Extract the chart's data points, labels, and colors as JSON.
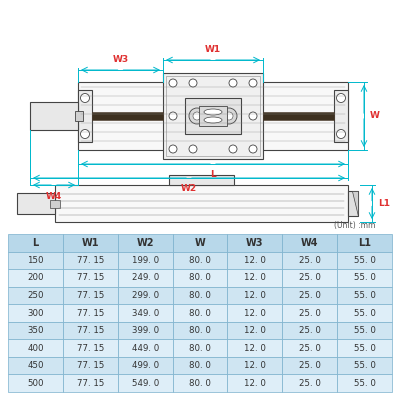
{
  "background_color": "#ffffff",
  "table_header_color": "#b8d8ea",
  "table_row_color1": "#cfe5f2",
  "table_row_color2": "#deeef8",
  "table_border_color": "#7ab0cc",
  "dim_color": "#00b8cc",
  "label_color": "#e03030",
  "draw_color": "#444444",
  "draw_color2": "#888888",
  "unit_text": "(Unit) :mm",
  "headers": [
    "L",
    "W1",
    "W2",
    "W",
    "W3",
    "W4",
    "L1"
  ],
  "rows": [
    [
      "150",
      "77. 15",
      "199. 0",
      "80. 0",
      "12. 0",
      "25. 0",
      "55. 0"
    ],
    [
      "200",
      "77. 15",
      "249. 0",
      "80. 0",
      "12. 0",
      "25. 0",
      "55. 0"
    ],
    [
      "250",
      "77. 15",
      "299. 0",
      "80. 0",
      "12. 0",
      "25. 0",
      "55. 0"
    ],
    [
      "300",
      "77. 15",
      "349. 0",
      "80. 0",
      "12. 0",
      "25. 0",
      "55. 0"
    ],
    [
      "350",
      "77. 15",
      "399. 0",
      "80. 0",
      "12. 0",
      "25. 0",
      "55. 0"
    ],
    [
      "400",
      "77. 15",
      "449. 0",
      "80. 0",
      "12. 0",
      "25. 0",
      "55. 0"
    ],
    [
      "450",
      "77. 15",
      "499. 0",
      "80. 0",
      "12. 0",
      "25. 0",
      "55. 0"
    ],
    [
      "500",
      "77. 15",
      "549. 0",
      "80. 0",
      "12. 0",
      "25. 0",
      "55. 0"
    ]
  ]
}
